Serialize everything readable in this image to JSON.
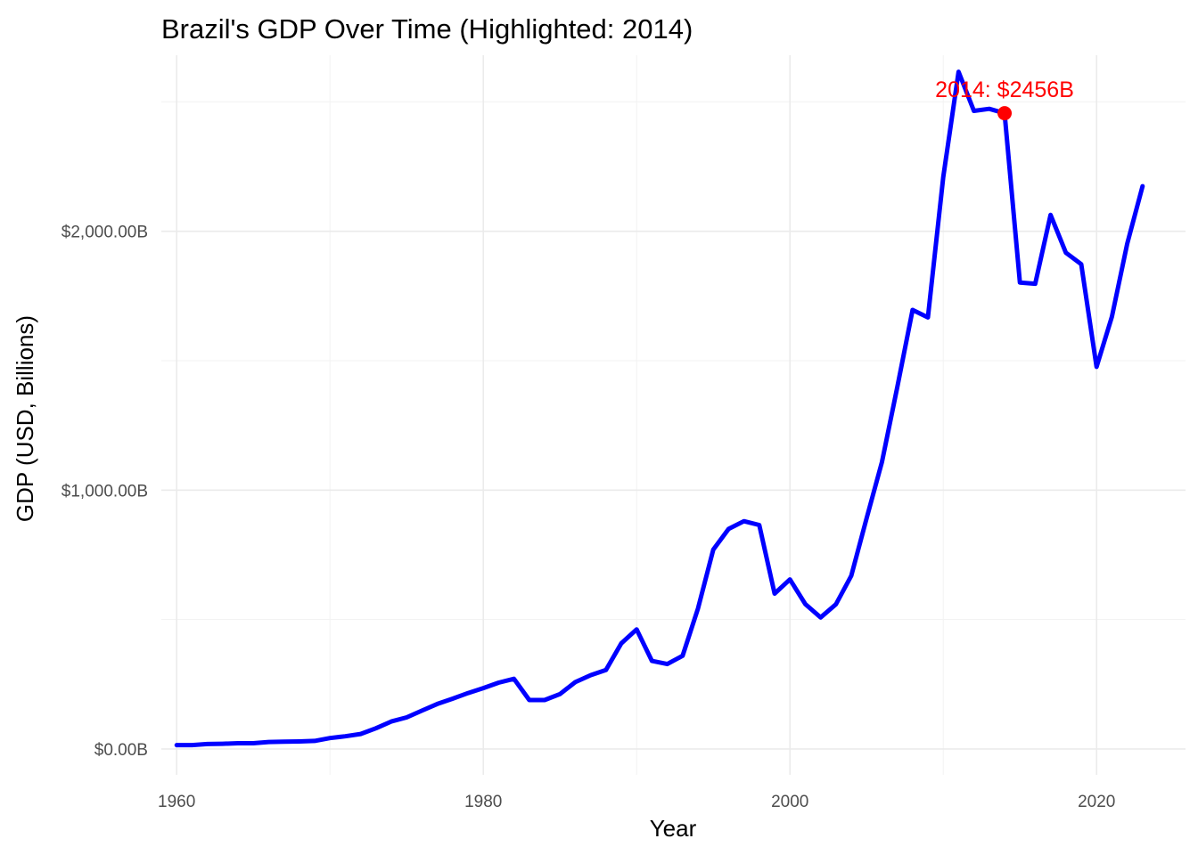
{
  "chart_data": {
    "type": "line",
    "title": "Brazil's GDP Over Time (Highlighted: 2014)",
    "xlabel": "Year",
    "ylabel": "GDP (USD, Billions)",
    "xlim": [
      1959,
      2025.8
    ],
    "ylim": [
      -100,
      2680
    ],
    "x_ticks": [
      1960,
      1980,
      2000,
      2020
    ],
    "x_tick_labels": [
      "1960",
      "1980",
      "2000",
      "2020"
    ],
    "y_ticks": [
      0,
      1000,
      2000
    ],
    "y_tick_labels": [
      "$0.00B",
      "$1,000.00B",
      "$2,000.00B"
    ],
    "grid": true,
    "legend": "none",
    "series": [
      {
        "color": "#0000ff",
        "x": [
          1960,
          1961,
          1962,
          1963,
          1964,
          1965,
          1966,
          1967,
          1968,
          1969,
          1970,
          1971,
          1972,
          1973,
          1974,
          1975,
          1976,
          1977,
          1978,
          1979,
          1980,
          1981,
          1982,
          1983,
          1984,
          1985,
          1986,
          1987,
          1988,
          1989,
          1990,
          1991,
          1992,
          1993,
          1994,
          1995,
          1996,
          1997,
          1998,
          1999,
          2000,
          2001,
          2002,
          2003,
          2004,
          2005,
          2006,
          2007,
          2008,
          2009,
          2010,
          2011,
          2012,
          2013,
          2014,
          2015,
          2016,
          2017,
          2018,
          2019,
          2020,
          2021,
          2022,
          2023
        ],
        "values": [
          15,
          15,
          19,
          20,
          22,
          22,
          27,
          28,
          29,
          31,
          42,
          49,
          58,
          80,
          106,
          122,
          148,
          174,
          194,
          216,
          235,
          256,
          271,
          189,
          189,
          212,
          258,
          285,
          305,
          408,
          462,
          340,
          328,
          360,
          542,
          770,
          850,
          880,
          865,
          600,
          655,
          560,
          508,
          559,
          669,
          891,
          1108,
          1397,
          1696,
          1667,
          2209,
          2616,
          2465,
          2473,
          2456,
          1802,
          1797,
          2063,
          1917,
          1873,
          1476,
          1670,
          1952,
          2174
        ]
      }
    ],
    "highlight": {
      "x": 2014,
      "value": 2456,
      "label": "2014: $2456B",
      "color": "#ff0000"
    }
  }
}
